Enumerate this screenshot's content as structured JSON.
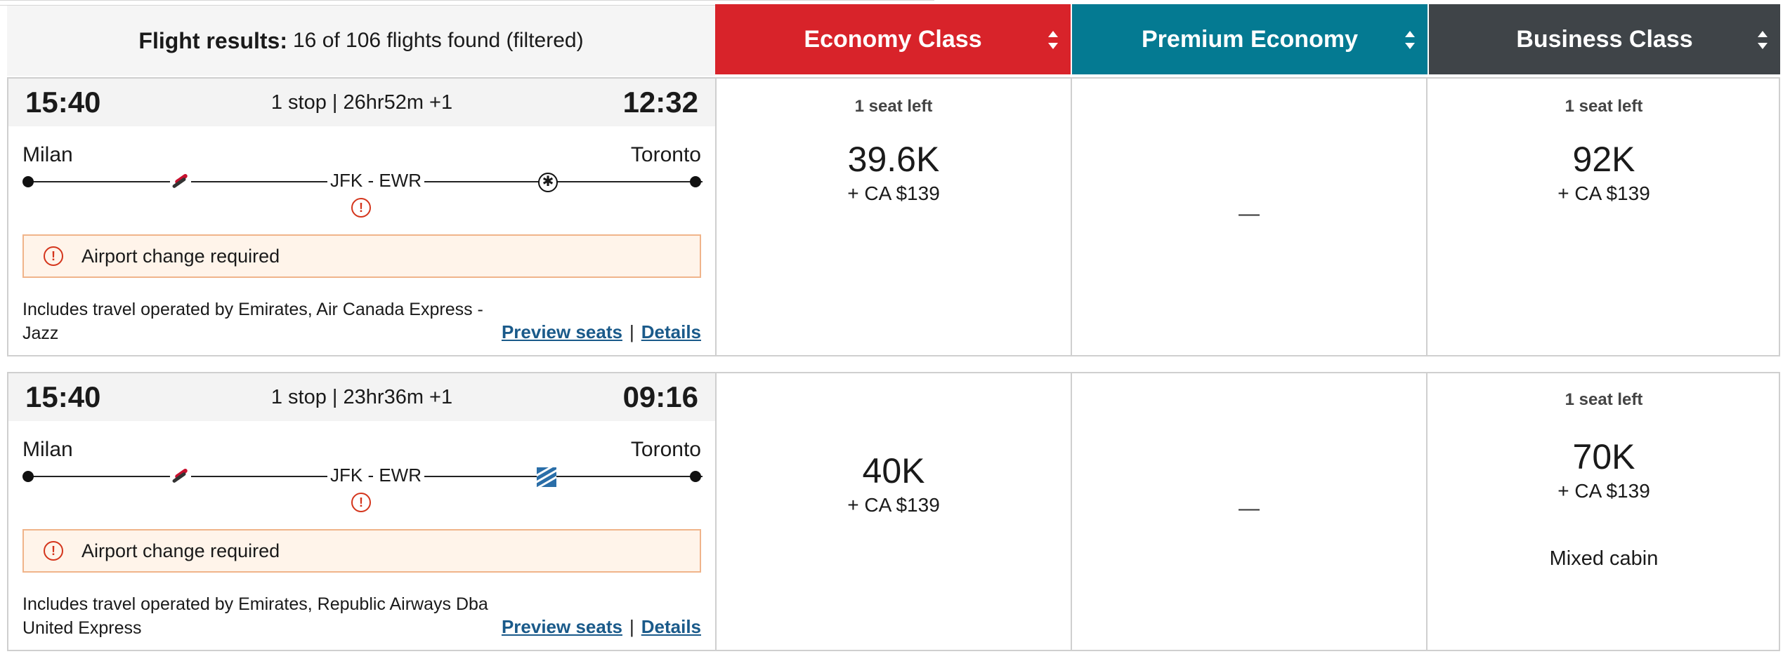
{
  "header": {
    "results_label": "Flight results:",
    "results_count": "16 of 106 flights found (filtered)",
    "cabins": [
      {
        "label": "Economy Class",
        "color": "#d8232a"
      },
      {
        "label": "Premium Economy",
        "color": "#047a92"
      },
      {
        "label": "Business Class",
        "color": "#3f4448"
      }
    ]
  },
  "flights": [
    {
      "depart_time": "15:40",
      "stops_duration": "1 stop | 26hr52m +1",
      "arrive_time": "12:32",
      "origin": "Milan",
      "destination": "Toronto",
      "connection": "JFK - EWR",
      "alert": "Airport change required",
      "operated_by": "Includes travel operated by Emirates, Air Canada Express - Jazz",
      "preview_seats": "Preview seats",
      "separator": "|",
      "details": "Details",
      "economy": {
        "seats": "1 seat left",
        "points": "39.6K",
        "fee": "+ CA $139"
      },
      "premium": {
        "dash": "—"
      },
      "business": {
        "seats": "1 seat left",
        "points": "92K",
        "fee": "+ CA $139"
      }
    },
    {
      "depart_time": "15:40",
      "stops_duration": "1 stop | 23hr36m +1",
      "arrive_time": "09:16",
      "origin": "Milan",
      "destination": "Toronto",
      "connection": "JFK - EWR",
      "alert": "Airport change required",
      "operated_by": "Includes travel operated by Emirates, Republic Airways Dba United Express",
      "preview_seats": "Preview seats",
      "separator": "|",
      "details": "Details",
      "economy": {
        "points": "40K",
        "fee": "+ CA $139"
      },
      "premium": {
        "dash": "—"
      },
      "business": {
        "seats": "1 seat left",
        "points": "70K",
        "fee": "+ CA $139",
        "note": "Mixed cabin"
      }
    }
  ]
}
